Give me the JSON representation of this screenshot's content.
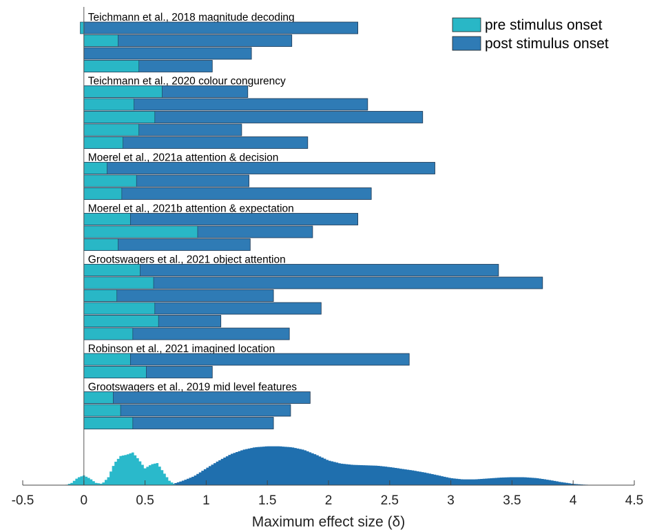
{
  "chart_data": {
    "type": "bar",
    "orientation": "horizontal",
    "xlabel": "Maximum effect size (δ)",
    "xlim": [
      -0.5,
      4.5
    ],
    "xticks": [
      "-0.5",
      "0",
      "0.5",
      "1",
      "1.5",
      "2",
      "2.5",
      "3",
      "3.5",
      "4",
      "4.5"
    ],
    "legend": {
      "placement": "top-right",
      "entries": [
        "pre stimulus onset",
        "post stimulus onset"
      ]
    },
    "colors": {
      "pre": "#29b7c6",
      "post": "#2f7bb5",
      "density_pre": "#2ab9cb",
      "density_post": "#1f6fae"
    },
    "groups": [
      {
        "label": "Teichmann et al., 2018 magnitude decoding",
        "bars": [
          {
            "pre": -0.03,
            "post": 2.24
          },
          {
            "pre": 0.28,
            "post": 1.7
          },
          {
            "pre": 0.0,
            "post": 1.37
          },
          {
            "pre": 0.45,
            "post": 1.05
          }
        ]
      },
      {
        "label": "Teichmann et al., 2020 colour congurency",
        "bars": [
          {
            "pre": 0.64,
            "post": 1.34
          },
          {
            "pre": 0.41,
            "post": 2.32
          },
          {
            "pre": 0.58,
            "post": 2.77
          },
          {
            "pre": 0.45,
            "post": 1.29
          },
          {
            "pre": 0.32,
            "post": 1.83
          }
        ]
      },
      {
        "label": "Moerel et al., 2021a attention & decision",
        "bars": [
          {
            "pre": 0.19,
            "post": 2.87
          },
          {
            "pre": 0.43,
            "post": 1.35
          },
          {
            "pre": 0.31,
            "post": 2.35
          }
        ]
      },
      {
        "label": "Moerel et al., 2021b attention & expectation",
        "bars": [
          {
            "pre": 0.38,
            "post": 2.24
          },
          {
            "pre": 0.93,
            "post": 1.87
          },
          {
            "pre": 0.28,
            "post": 1.36
          }
        ]
      },
      {
        "label": "Grootswagers et al., 2021 object attention",
        "bars": [
          {
            "pre": 0.46,
            "post": 3.39
          },
          {
            "pre": 0.57,
            "post": 3.75
          },
          {
            "pre": 0.27,
            "post": 1.55
          },
          {
            "pre": 0.58,
            "post": 1.94
          },
          {
            "pre": 0.61,
            "post": 1.12
          },
          {
            "pre": 0.4,
            "post": 1.68
          }
        ]
      },
      {
        "label": "Robinson et al., 2021 imagined location",
        "bars": [
          {
            "pre": 0.38,
            "post": 2.66
          },
          {
            "pre": 0.51,
            "post": 1.05
          }
        ]
      },
      {
        "label": "Grootswagers et al., 2019 mid level features",
        "bars": [
          {
            "pre": 0.24,
            "post": 1.85
          },
          {
            "pre": 0.3,
            "post": 1.69
          },
          {
            "pre": 0.4,
            "post": 1.55
          }
        ]
      }
    ],
    "density_pre": [
      [
        -0.15,
        0.0
      ],
      [
        -0.1,
        0.05
      ],
      [
        -0.05,
        0.17
      ],
      [
        0.0,
        0.22
      ],
      [
        0.05,
        0.15
      ],
      [
        0.1,
        0.05
      ],
      [
        0.15,
        0.03
      ],
      [
        0.2,
        0.18
      ],
      [
        0.25,
        0.5
      ],
      [
        0.3,
        0.66
      ],
      [
        0.35,
        0.69
      ],
      [
        0.4,
        0.74
      ],
      [
        0.45,
        0.58
      ],
      [
        0.5,
        0.38
      ],
      [
        0.55,
        0.47
      ],
      [
        0.6,
        0.5
      ],
      [
        0.65,
        0.3
      ],
      [
        0.7,
        0.1
      ],
      [
        0.75,
        0.0
      ]
    ],
    "density_post": [
      [
        0.72,
        0.02
      ],
      [
        0.8,
        0.09
      ],
      [
        0.9,
        0.2
      ],
      [
        1.0,
        0.38
      ],
      [
        1.1,
        0.55
      ],
      [
        1.2,
        0.7
      ],
      [
        1.3,
        0.8
      ],
      [
        1.4,
        0.86
      ],
      [
        1.5,
        0.88
      ],
      [
        1.6,
        0.88
      ],
      [
        1.7,
        0.86
      ],
      [
        1.8,
        0.8
      ],
      [
        1.9,
        0.69
      ],
      [
        2.0,
        0.56
      ],
      [
        2.1,
        0.49
      ],
      [
        2.2,
        0.46
      ],
      [
        2.3,
        0.45
      ],
      [
        2.4,
        0.44
      ],
      [
        2.5,
        0.41
      ],
      [
        2.6,
        0.37
      ],
      [
        2.7,
        0.33
      ],
      [
        2.8,
        0.28
      ],
      [
        2.9,
        0.22
      ],
      [
        3.0,
        0.16
      ],
      [
        3.1,
        0.13
      ],
      [
        3.2,
        0.13
      ],
      [
        3.3,
        0.15
      ],
      [
        3.4,
        0.17
      ],
      [
        3.5,
        0.18
      ],
      [
        3.6,
        0.18
      ],
      [
        3.7,
        0.16
      ],
      [
        3.8,
        0.12
      ],
      [
        3.9,
        0.07
      ],
      [
        4.0,
        0.03
      ],
      [
        4.1,
        0.01
      ],
      [
        4.2,
        0.0
      ]
    ]
  }
}
